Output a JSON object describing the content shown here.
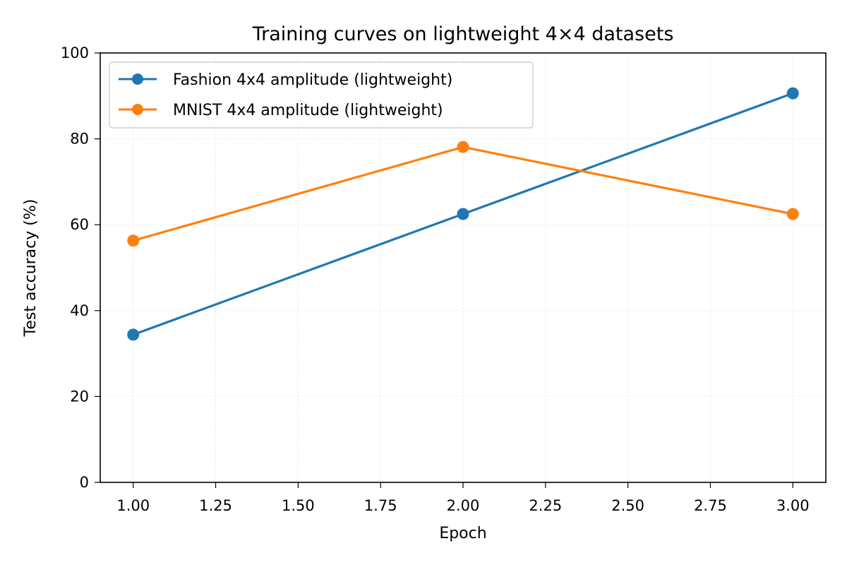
{
  "chart_data": {
    "type": "line",
    "title": "Training curves on lightweight 4×4 datasets",
    "xlabel": "Epoch",
    "ylabel": "Test accuracy (%)",
    "xlim": [
      0.9,
      3.1
    ],
    "ylim": [
      0,
      100
    ],
    "x": [
      1.0,
      2.0,
      3.0
    ],
    "xticks": [
      1.0,
      1.25,
      1.5,
      1.75,
      2.0,
      2.25,
      2.5,
      2.75,
      3.0
    ],
    "xtick_labels": [
      "1.00",
      "1.25",
      "1.50",
      "1.75",
      "2.00",
      "2.25",
      "2.50",
      "2.75",
      "3.00"
    ],
    "yticks": [
      0,
      20,
      40,
      60,
      80,
      100
    ],
    "ytick_labels": [
      "0",
      "20",
      "40",
      "60",
      "80",
      "100"
    ],
    "grid": true,
    "legend_position": "top-left",
    "series": [
      {
        "name": "Fashion 4x4 amplitude (lightweight)",
        "values": [
          34.4,
          62.5,
          90.6
        ],
        "color": "#1f77b4",
        "marker": "circle"
      },
      {
        "name": "MNIST 4x4 amplitude (lightweight)",
        "values": [
          56.3,
          78.1,
          62.5
        ],
        "color": "#ff7f0e",
        "marker": "circle"
      }
    ]
  }
}
